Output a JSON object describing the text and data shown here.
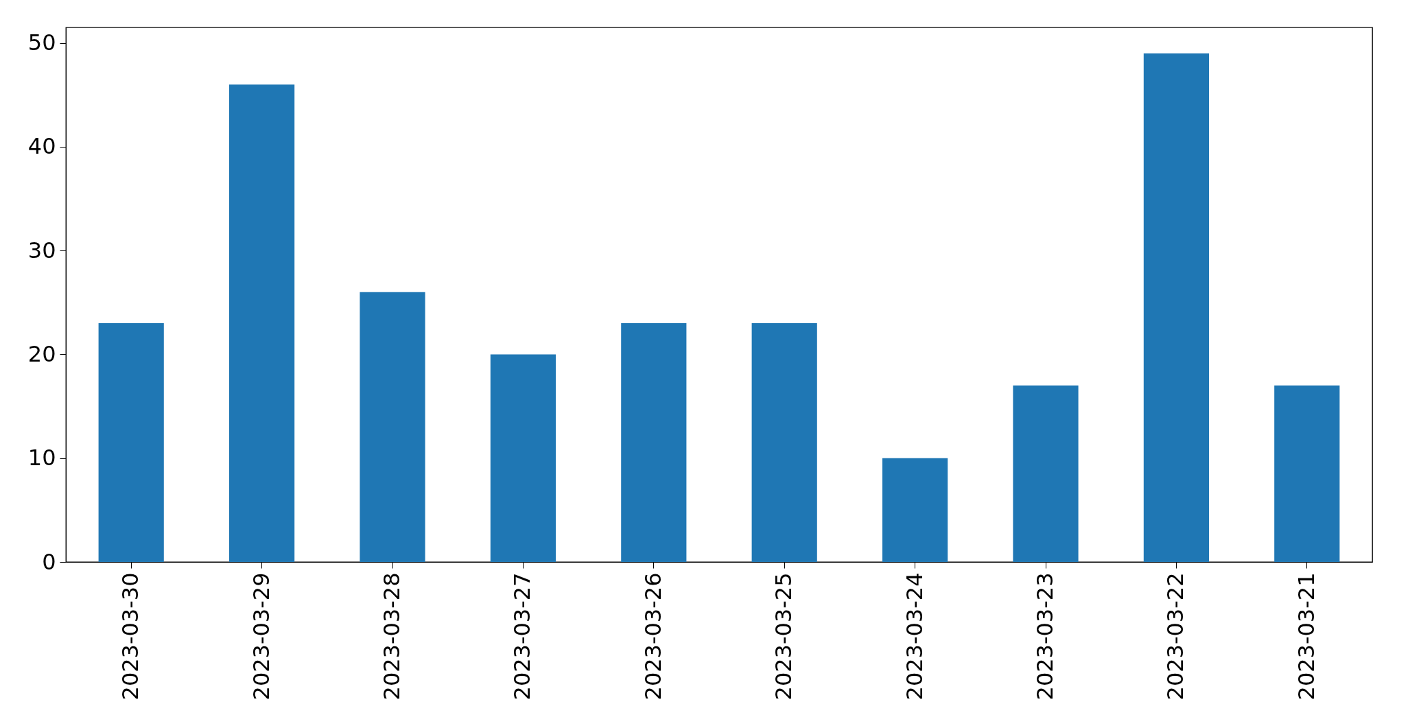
{
  "chart_data": {
    "type": "bar",
    "categories": [
      "2023-03-30",
      "2023-03-29",
      "2023-03-28",
      "2023-03-27",
      "2023-03-26",
      "2023-03-25",
      "2023-03-24",
      "2023-03-23",
      "2023-03-22",
      "2023-03-21"
    ],
    "values": [
      23,
      46,
      26,
      20,
      23,
      23,
      10,
      17,
      49,
      17
    ],
    "color": "#1f77b4",
    "ylim": [
      0,
      51.5
    ],
    "yticks": [
      0,
      10,
      20,
      30,
      40,
      50
    ],
    "grid": false
  }
}
